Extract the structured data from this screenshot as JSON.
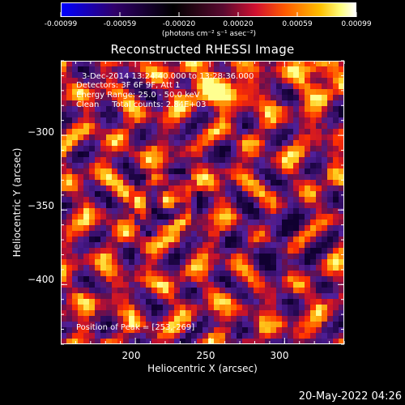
{
  "colorbar": {
    "tick_labels": [
      "-0.00099",
      "-0.00059",
      "-0.00020",
      "0.00020",
      "0.00059",
      "0.00099"
    ],
    "tick_values": [
      -0.00099,
      -0.00059,
      -0.0002,
      0.0002,
      0.00059,
      0.00099
    ],
    "unit_label": "(photons cm⁻² s⁻¹ asec⁻²)",
    "colors": [
      "#0000ff",
      "#2a0040",
      "#000000",
      "#4a1a8a",
      "#c0184a",
      "#ff3a00",
      "#ff9a00",
      "#ffff60",
      "#ffffff"
    ]
  },
  "chart_data": {
    "type": "heatmap",
    "title": "Reconstructed RHESSI Image",
    "xlabel": "Heliocentric X (arcsec)",
    "ylabel": "Heliocentric Y (arcsec)",
    "xlim": [
      150,
      340
    ],
    "ylim": [
      -440,
      -250
    ],
    "x_ticks": [
      200,
      250,
      300
    ],
    "y_ticks": [
      -300,
      -350,
      -400
    ],
    "x_tick_labels": [
      "200",
      "250",
      "300"
    ],
    "y_tick_labels": [
      "−300",
      "−350",
      "−400"
    ],
    "peak": [
      253,
      -269
    ],
    "value_range": [
      -0.00099,
      0.00099
    ]
  },
  "info": {
    "time": "3-Dec-2014 13:24:40.000 to 13:28:36.000",
    "detectors": "Detectors: 3F 6F 9F, Att 1",
    "energy": "Energy Range: 25.0 - 50.0 keV",
    "clean": "Clean     Total counts: 2.84E+03",
    "peak": "Position of Peak = [253,-269]"
  },
  "footer": {
    "timestamp": "20-May-2022 04:26"
  }
}
